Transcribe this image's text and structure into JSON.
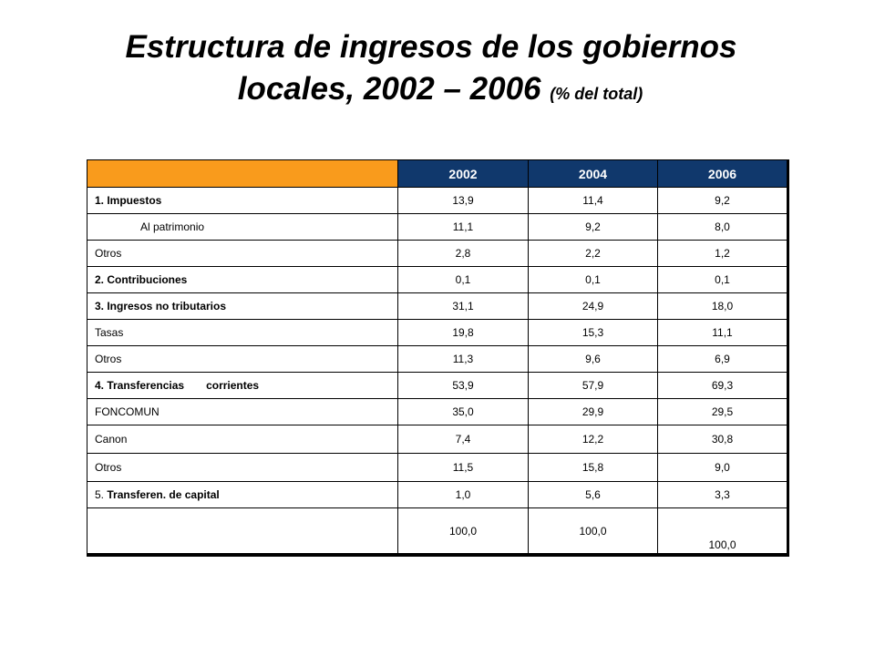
{
  "title": {
    "line1": "Estructura de ingresos de los gobiernos",
    "line2": "locales, 2002 – 2006",
    "note": "(% del total)"
  },
  "colors": {
    "header_blank": "#f99b1c",
    "header_year": "#10386c"
  },
  "table": {
    "years": [
      "2002",
      "2004",
      "2006"
    ],
    "rows": [
      {
        "label": "1. Impuestos",
        "values": [
          "13,9",
          "11,4",
          "9,2"
        ]
      },
      {
        "label": "Al patrimonio",
        "values": [
          "11,1",
          "9,2",
          "8,0"
        ]
      },
      {
        "label": "Otros",
        "values": [
          "2,8",
          "2,2",
          "1,2"
        ]
      },
      {
        "label": "2. Contribuciones",
        "values": [
          "0,1",
          "0,1",
          "0,1"
        ]
      },
      {
        "label": "3. Ingresos no tributarios",
        "values": [
          "31,1",
          "24,9",
          "18,0"
        ]
      },
      {
        "label": "Tasas",
        "values": [
          "19,8",
          "15,3",
          "11,1"
        ]
      },
      {
        "label": "Otros",
        "values": [
          "11,3",
          "9,6",
          "6,9"
        ]
      },
      {
        "label_a": "4. Transferencias",
        "label_b": "corrientes",
        "values": [
          "53,9",
          "57,9",
          "69,3"
        ]
      },
      {
        "label": "FONCOMUN",
        "values": [
          "35,0",
          "29,9",
          "29,5"
        ]
      },
      {
        "label": "Canon",
        "values": [
          "7,4",
          "12,2",
          "30,8"
        ]
      },
      {
        "label": "Otros",
        "values": [
          "11,5",
          "15,8",
          "9,0"
        ]
      },
      {
        "label_a": "5.",
        "label_b": "Transferen. de capital",
        "values": [
          "1,0",
          "5,6",
          "3,3"
        ]
      },
      {
        "label": "",
        "values": [
          "100,0",
          "100,0",
          "100,0"
        ]
      }
    ]
  }
}
